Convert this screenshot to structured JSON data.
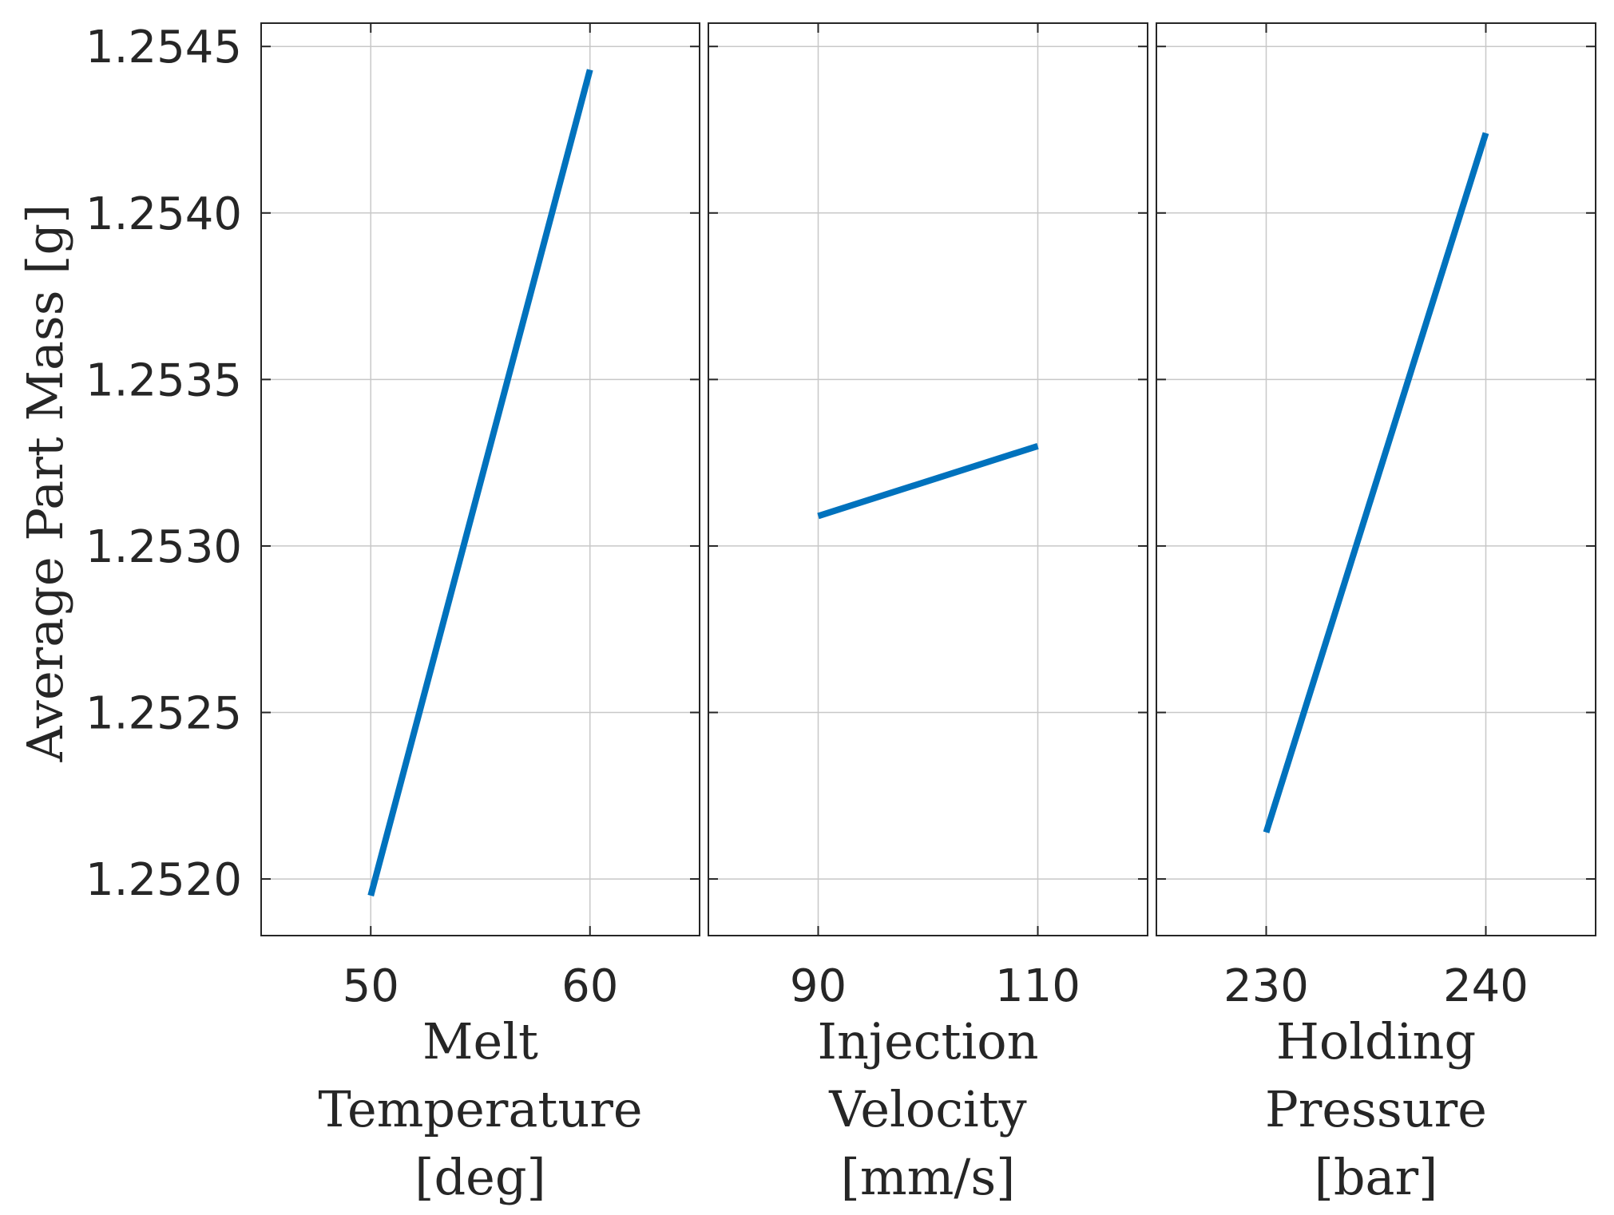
{
  "chart_data": {
    "type": "line",
    "title": "",
    "ylabel": "Average Part Mass [g]",
    "ylim": [
      1.25183,
      1.25457
    ],
    "yticks": [
      1.252,
      1.2525,
      1.253,
      1.2535,
      1.254,
      1.2545
    ],
    "ytick_labels": [
      "1.2520",
      "1.2525",
      "1.2530",
      "1.2535",
      "1.2540",
      "1.2545"
    ],
    "grid": true,
    "line_color": "#0072bd",
    "panels": [
      {
        "id": "melt-temperature",
        "xlabel_lines": [
          "Melt",
          "Temperature",
          "[deg]"
        ],
        "xlim": [
          45,
          65
        ],
        "xticks": [
          50,
          60
        ],
        "xtick_labels": [
          "50",
          "60"
        ],
        "x": [
          50,
          60
        ],
        "y": [
          1.25195,
          1.25443
        ]
      },
      {
        "id": "injection-velocity",
        "xlabel_lines": [
          "Injection",
          "Velocity",
          "[mm/s]"
        ],
        "xlim": [
          80,
          120
        ],
        "xticks": [
          90,
          110
        ],
        "xtick_labels": [
          "90",
          "110"
        ],
        "x": [
          90,
          110
        ],
        "y": [
          1.25309,
          1.2533
        ]
      },
      {
        "id": "holding-pressure",
        "xlabel_lines": [
          "Holding",
          "Pressure",
          "[bar]"
        ],
        "xlim": [
          225,
          245
        ],
        "xticks": [
          230,
          240
        ],
        "xtick_labels": [
          "230",
          "240"
        ],
        "x": [
          230,
          240
        ],
        "y": [
          1.25214,
          1.25424
        ]
      }
    ]
  }
}
